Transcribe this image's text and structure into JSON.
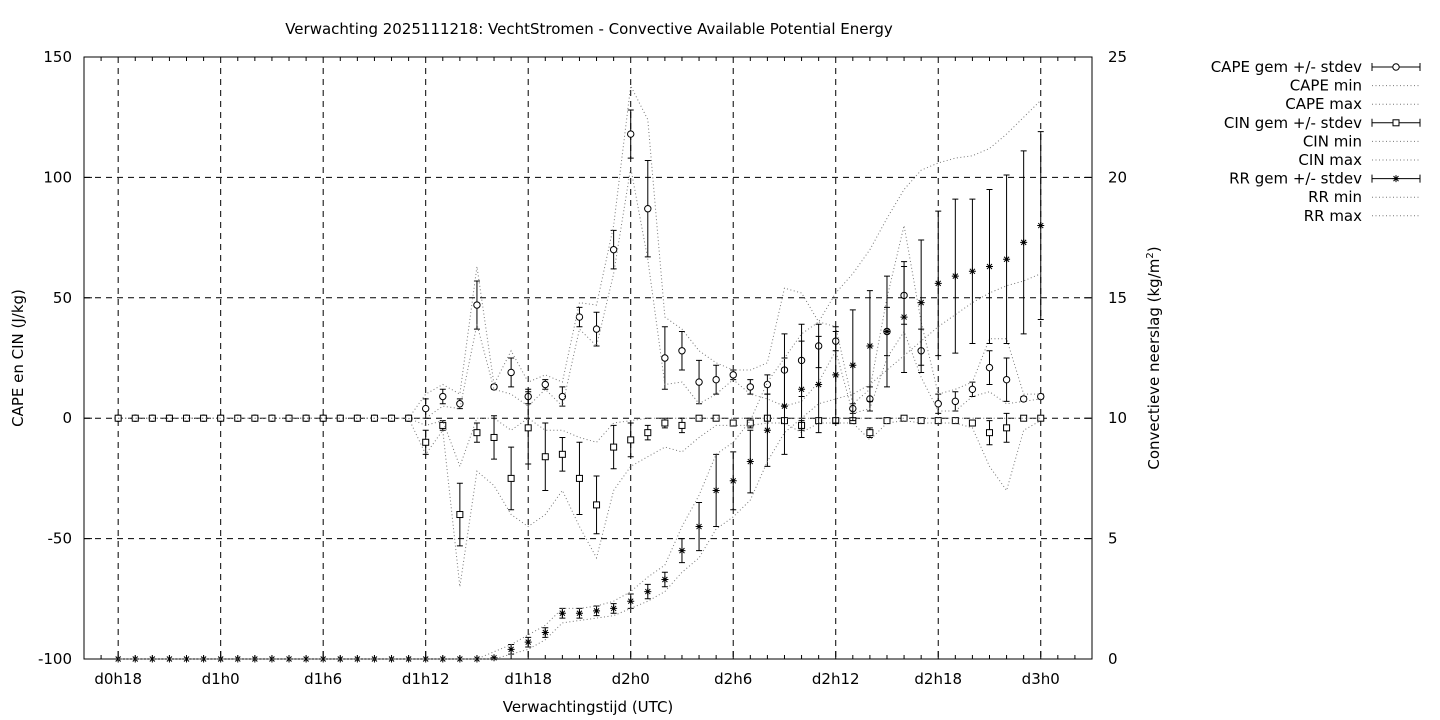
{
  "chart_data": {
    "type": "line",
    "title": "Verwachting 2025111218: VechtStromen - Convective Available Potential Energy",
    "xlabel": "Verwachtingstijd (UTC)",
    "ylabel": "CAPE en CIN (J/kg)",
    "y2label": "Convectieve neerslag (kg/m",
    "y2label_sup": "2",
    "y2label_end": ")",
    "x_unit": "hours since d0h0",
    "xlim": [
      16,
      75
    ],
    "ylim": [
      -100,
      150
    ],
    "y2lim": [
      0,
      25
    ],
    "grid": true,
    "legend_position": "right, outside",
    "x_ticks": [
      {
        "x": 18,
        "label": "d0h18"
      },
      {
        "x": 24,
        "label": "d1h0"
      },
      {
        "x": 30,
        "label": "d1h6"
      },
      {
        "x": 36,
        "label": "d1h12"
      },
      {
        "x": 42,
        "label": "d1h18"
      },
      {
        "x": 48,
        "label": "d2h0"
      },
      {
        "x": 54,
        "label": "d2h6"
      },
      {
        "x": 60,
        "label": "d2h12"
      },
      {
        "x": 66,
        "label": "d2h18"
      },
      {
        "x": 72,
        "label": "d3h0"
      }
    ],
    "y_ticks": [
      "-100",
      "-50",
      "0",
      "50",
      "100",
      "150"
    ],
    "y2_ticks": [
      "0",
      "5",
      "10",
      "15",
      "20",
      "25"
    ],
    "x": [
      18,
      19,
      20,
      21,
      22,
      23,
      24,
      25,
      26,
      27,
      28,
      29,
      30,
      31,
      32,
      33,
      34,
      35,
      36,
      37,
      38,
      39,
      40,
      41,
      42,
      43,
      44,
      45,
      46,
      47,
      48,
      49,
      50,
      51,
      52,
      53,
      54,
      55,
      56,
      57,
      58,
      59,
      60,
      61,
      62,
      63,
      64,
      65,
      66,
      67,
      68,
      69,
      70,
      71,
      72
    ],
    "series": [
      {
        "name": "CAPE gem +/- stdev",
        "axis": "y1",
        "marker": "circle",
        "mean": [
          0,
          0,
          0,
          0,
          0,
          0,
          0,
          0,
          0,
          0,
          0,
          0,
          0,
          0,
          0,
          0,
          0,
          0,
          4,
          9,
          6,
          47,
          13,
          19,
          9,
          14,
          9,
          42,
          37,
          70,
          118,
          87,
          25,
          28,
          15,
          16,
          18,
          13,
          14,
          20,
          24,
          30,
          32,
          4,
          8,
          36,
          51,
          28,
          6,
          7,
          12,
          21,
          16,
          8,
          9
        ],
        "sd": [
          0,
          0,
          0,
          0,
          0,
          0,
          0,
          0,
          0,
          0,
          0,
          0,
          0,
          0,
          0,
          0,
          0,
          0,
          4,
          3,
          2,
          10,
          1,
          6,
          3,
          2,
          4,
          4,
          7,
          8,
          10,
          20,
          13,
          8,
          9,
          6,
          2,
          3,
          4,
          15,
          15,
          9,
          4,
          2,
          5,
          10,
          12,
          9,
          4,
          4,
          3,
          7,
          9,
          1,
          1
        ]
      },
      {
        "name": "CAPE min",
        "axis": "y1",
        "style": "dotted",
        "values": [
          0,
          0,
          0,
          0,
          0,
          0,
          0,
          0,
          0,
          0,
          0,
          0,
          0,
          0,
          0,
          0,
          0,
          0,
          0,
          5,
          4,
          39,
          12,
          10,
          5,
          12,
          5,
          37,
          30,
          60,
          104,
          66,
          14,
          15,
          6,
          10,
          16,
          10,
          8,
          5,
          7,
          15,
          28,
          2,
          4,
          25,
          36,
          17,
          3,
          3,
          9,
          11,
          6,
          7,
          8
        ]
      },
      {
        "name": "CAPE max",
        "axis": "y1",
        "style": "dotted",
        "values": [
          0,
          0,
          0,
          0,
          0,
          0,
          0,
          0,
          0,
          0,
          0,
          0,
          0,
          0,
          0,
          0,
          0,
          0,
          10,
          14,
          10,
          63,
          14,
          28,
          15,
          18,
          15,
          48,
          47,
          80,
          138,
          124,
          42,
          37,
          28,
          23,
          20,
          20,
          23,
          54,
          52,
          40,
          38,
          6,
          12,
          50,
          80,
          40,
          10,
          12,
          15,
          33,
          33,
          10,
          10
        ]
      },
      {
        "name": "CIN gem +/- stdev",
        "axis": "y1",
        "marker": "square",
        "mean": [
          0,
          0,
          0,
          0,
          0,
          0,
          0,
          0,
          0,
          0,
          0,
          0,
          0,
          0,
          0,
          0,
          0,
          0,
          -10,
          -3,
          -40,
          -6,
          -8,
          -25,
          -4,
          -16,
          -15,
          -25,
          -36,
          -12,
          -9,
          -6,
          -2,
          -3,
          0,
          0,
          -2,
          -2,
          0,
          -1,
          -3,
          -1,
          -1,
          -1,
          -6,
          -1,
          0,
          -1,
          -1,
          -1,
          -2,
          -6,
          -4,
          0,
          0
        ],
        "sd": [
          0,
          0,
          0,
          0,
          0,
          0,
          0,
          0,
          0,
          0,
          0,
          0,
          0,
          0,
          0,
          0,
          0,
          0,
          5,
          2,
          13,
          4,
          9,
          13,
          15,
          14,
          7,
          15,
          12,
          9,
          7,
          3,
          2,
          3,
          0,
          0,
          1,
          2,
          1,
          1,
          2,
          1,
          1,
          1,
          2,
          1,
          0,
          0,
          1,
          1,
          1,
          5,
          6,
          0,
          0
        ]
      },
      {
        "name": "CIN min",
        "axis": "y1",
        "style": "dotted",
        "values": [
          0,
          0,
          0,
          0,
          0,
          0,
          0,
          0,
          0,
          0,
          0,
          0,
          0,
          0,
          0,
          0,
          0,
          0,
          -15,
          -5,
          -70,
          -22,
          -28,
          -40,
          -45,
          -40,
          -30,
          -45,
          -58,
          -30,
          -20,
          -16,
          -12,
          -14,
          -8,
          -3,
          -3,
          -3,
          -2,
          -2,
          -6,
          -2,
          -2,
          -2,
          -9,
          -2,
          -1,
          -2,
          -2,
          -2,
          -4,
          -20,
          -30,
          -5,
          -1
        ]
      },
      {
        "name": "CIN max",
        "axis": "y1",
        "style": "dotted",
        "values": [
          0,
          0,
          0,
          0,
          0,
          0,
          0,
          0,
          0,
          0,
          0,
          0,
          0,
          0,
          0,
          0,
          0,
          0,
          -3,
          -1,
          -20,
          0,
          0,
          -5,
          0,
          -5,
          -5,
          -8,
          -10,
          -2,
          -1,
          0,
          0,
          0,
          0,
          0,
          0,
          0,
          0,
          0,
          0,
          0,
          0,
          0,
          0,
          0,
          0,
          0,
          0,
          0,
          0,
          0,
          0,
          0,
          0
        ]
      },
      {
        "name": "RR gem +/- stdev",
        "axis": "y2",
        "marker": "star",
        "mean": [
          0,
          0,
          0,
          0,
          0,
          0,
          0,
          0,
          0,
          0,
          0,
          0,
          0,
          0,
          0,
          0,
          0,
          0,
          0,
          0,
          0,
          0,
          0.05,
          0.4,
          0.7,
          1.1,
          1.9,
          1.9,
          2.0,
          2.1,
          2.4,
          2.8,
          3.3,
          4.5,
          5.5,
          7.0,
          7.4,
          8.2,
          9.5,
          10.5,
          11.2,
          11.4,
          11.8,
          12.2,
          13.0,
          13.6,
          14.2,
          14.8,
          15.6,
          15.9,
          16.1,
          16.3,
          16.6,
          17.3,
          18.0
        ],
        "sd": [
          0,
          0,
          0,
          0,
          0,
          0,
          0,
          0,
          0,
          0,
          0,
          0,
          0,
          0,
          0,
          0,
          0,
          0,
          0,
          0,
          0,
          0,
          0,
          0.2,
          0.2,
          0.2,
          0.2,
          0.2,
          0.2,
          0.2,
          0.3,
          0.3,
          0.3,
          0.5,
          1.0,
          1.5,
          1.2,
          1.3,
          1.5,
          2.0,
          2.0,
          2.0,
          2.0,
          2.3,
          2.3,
          2.3,
          2.3,
          2.6,
          3.0,
          3.2,
          3.0,
          3.2,
          3.5,
          3.8,
          3.9
        ]
      },
      {
        "name": "RR min",
        "axis": "y2",
        "style": "dotted",
        "values": [
          0,
          0,
          0,
          0,
          0,
          0,
          0,
          0,
          0,
          0,
          0,
          0,
          0,
          0,
          0,
          0,
          0,
          0,
          0,
          0,
          0,
          0,
          0,
          0.2,
          0.4,
          0.8,
          1.5,
          1.6,
          1.7,
          1.8,
          2.1,
          2.4,
          2.8,
          3.6,
          4.2,
          5.4,
          5.9,
          6.6,
          8.2,
          9.4,
          10.0,
          10.6,
          10.8,
          11.0,
          11.4,
          12.0,
          12.6,
          13.2,
          13.8,
          14.3,
          14.8,
          15.2,
          15.5,
          15.7,
          16.0
        ]
      },
      {
        "name": "RR max",
        "axis": "y2",
        "style": "dotted",
        "values": [
          0,
          0,
          0,
          0,
          0,
          0,
          0,
          0,
          0,
          0,
          0,
          0,
          0,
          0,
          0,
          0,
          0,
          0,
          0,
          0,
          0,
          0,
          0.3,
          0.6,
          1.0,
          1.4,
          2.1,
          2.1,
          2.2,
          2.4,
          2.8,
          3.4,
          3.9,
          5.5,
          6.8,
          8.5,
          9.0,
          9.9,
          11.5,
          12.5,
          13.5,
          14.0,
          15.2,
          16.0,
          17.0,
          18.3,
          19.5,
          20.3,
          20.6,
          20.8,
          20.9,
          21.2,
          21.8,
          22.5,
          23.2
        ]
      }
    ]
  }
}
